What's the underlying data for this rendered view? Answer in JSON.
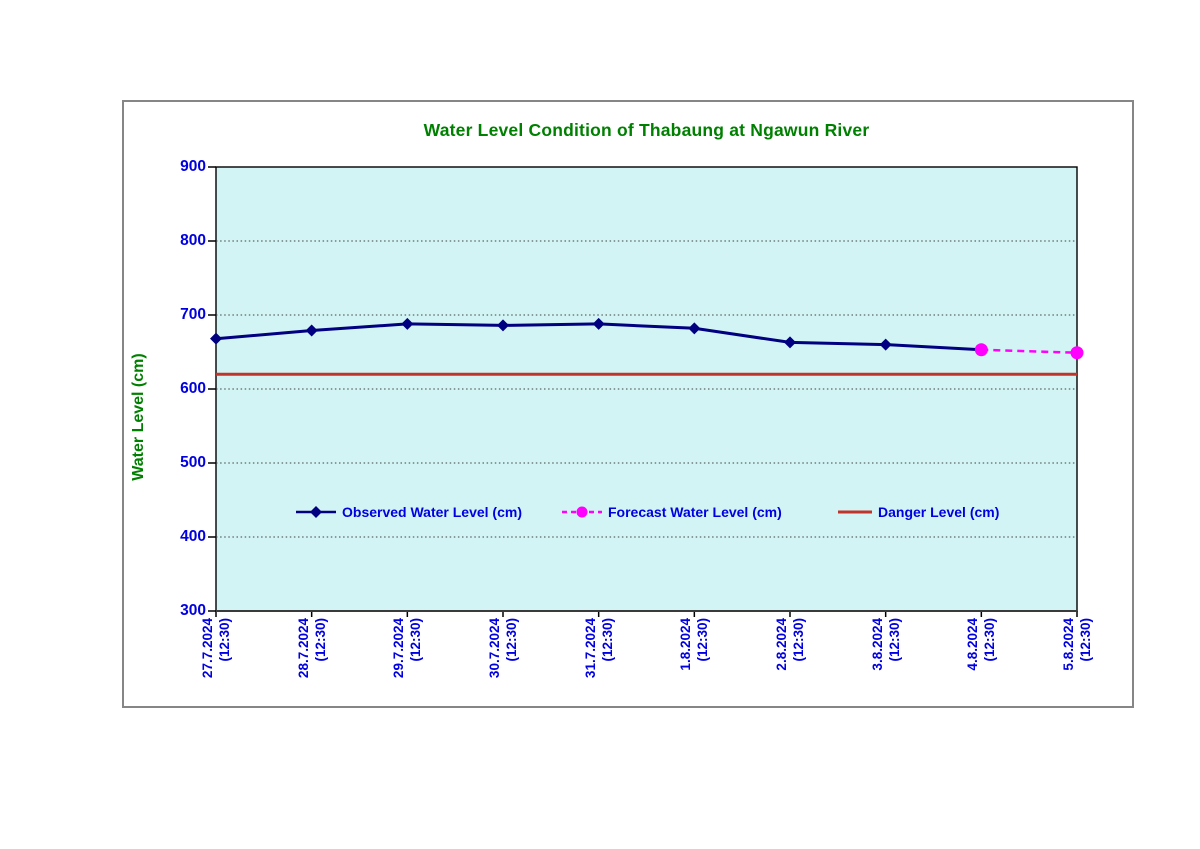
{
  "chart_data": {
    "type": "line",
    "title": "Water Level Condition of Thabaung at Ngawun River",
    "ylabel": "Water Level (cm)",
    "ylim": [
      300,
      900
    ],
    "yticks": [
      300,
      400,
      500,
      600,
      700,
      800,
      900
    ],
    "grid": "horizontal-dotted",
    "legend_position": "inside-lower-center",
    "plot_background": "#D2F4F4",
    "gridline_color": "#404040",
    "axis_line_color": "#000000",
    "categories": [
      {
        "date": "27.7.2024",
        "time": "(12:30)"
      },
      {
        "date": "28.7.2024",
        "time": "(12:30)"
      },
      {
        "date": "29.7.2024",
        "time": "(12:30)"
      },
      {
        "date": "30.7.2024",
        "time": "(12:30)"
      },
      {
        "date": "31.7.2024",
        "time": "(12:30)"
      },
      {
        "date": "1.8.2024",
        "time": "(12:30)"
      },
      {
        "date": "2.8.2024",
        "time": "(12:30)"
      },
      {
        "date": "3.8.2024",
        "time": "(12:30)"
      },
      {
        "date": "4.8.2024",
        "time": "(12:30)"
      },
      {
        "date": "5.8.2024",
        "time": "(12:30)"
      }
    ],
    "series": [
      {
        "name": "Observed Water Level (cm)",
        "kind": "line",
        "color": "#000080",
        "marker": "diamond",
        "line_style": "solid",
        "values": [
          668,
          679,
          688,
          686,
          688,
          682,
          663,
          660,
          653,
          null
        ]
      },
      {
        "name": "Forecast Water Level (cm)",
        "kind": "line",
        "color": "#FF00FF",
        "marker": "circle",
        "line_style": "dashed",
        "values": [
          null,
          null,
          null,
          null,
          null,
          null,
          null,
          null,
          653,
          649
        ]
      },
      {
        "name": "Danger Level (cm)",
        "kind": "hline",
        "color": "#C0342B",
        "value": 620
      }
    ],
    "text_colors": {
      "title": "#008000",
      "axis_labels": "#0000E0",
      "legend_labels": "#0000E0"
    }
  }
}
